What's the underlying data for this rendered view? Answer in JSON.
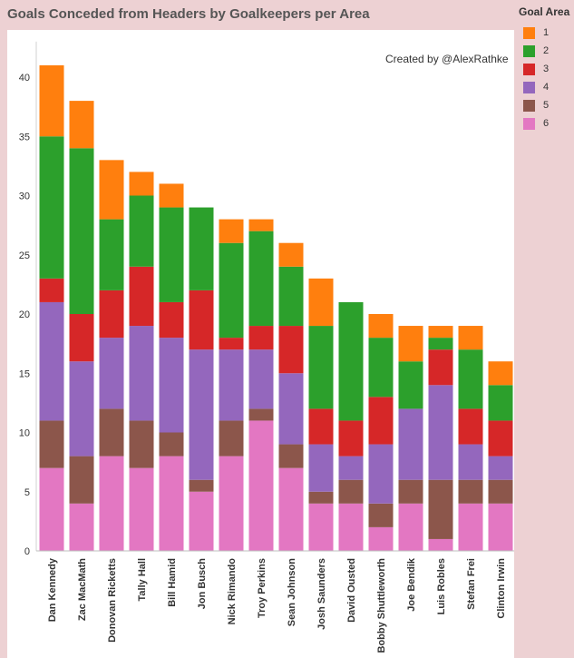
{
  "chart_data": {
    "type": "bar",
    "stacked": true,
    "title": "Goals Conceded from Headers by Goalkeepers per Area",
    "xlabel": "",
    "ylabel": "",
    "ylim": [
      0,
      43
    ],
    "yticks": [
      0,
      5,
      10,
      15,
      20,
      25,
      30,
      35,
      40
    ],
    "grid": false,
    "legend": {
      "title": "Goal Area",
      "position": "top-right"
    },
    "annotation": "Created by @AlexRathke",
    "categories": [
      "Dan Kennedy",
      "Zac MacMath",
      "Donovan Ricketts",
      "Tally Hall",
      "Bill Hamid",
      "Jon Busch",
      "Nick Rimando",
      "Troy Perkins",
      "Sean Johnson",
      "Josh Saunders",
      "David Ousted",
      "Bobby Shuttleworth",
      "Joe Bendik",
      "Luis Robles",
      "Stefan Frei",
      "Clinton Irwin"
    ],
    "series": [
      {
        "name": "6",
        "color": "#e377c2",
        "values": [
          7,
          4,
          8,
          7,
          8,
          5,
          8,
          11,
          7,
          4,
          4,
          2,
          4,
          1,
          4,
          4
        ]
      },
      {
        "name": "5",
        "color": "#8c564b",
        "values": [
          4,
          4,
          4,
          4,
          2,
          1,
          3,
          1,
          2,
          1,
          2,
          2,
          2,
          5,
          2,
          2
        ]
      },
      {
        "name": "4",
        "color": "#9467bd",
        "values": [
          10,
          8,
          6,
          8,
          8,
          11,
          6,
          5,
          6,
          4,
          2,
          5,
          6,
          8,
          3,
          2
        ]
      },
      {
        "name": "3",
        "color": "#d62728",
        "values": [
          2,
          4,
          4,
          5,
          3,
          5,
          1,
          2,
          4,
          3,
          3,
          4,
          0,
          3,
          3,
          3
        ]
      },
      {
        "name": "2",
        "color": "#2ca02c",
        "values": [
          12,
          14,
          6,
          6,
          8,
          7,
          8,
          8,
          5,
          7,
          10,
          5,
          4,
          1,
          5,
          3
        ]
      },
      {
        "name": "1",
        "color": "#ff7f0e",
        "values": [
          6,
          4,
          5,
          2,
          2,
          0,
          2,
          1,
          2,
          4,
          0,
          2,
          3,
          1,
          2,
          2
        ]
      }
    ],
    "legend_order": [
      "1",
      "2",
      "3",
      "4",
      "5",
      "6"
    ]
  }
}
